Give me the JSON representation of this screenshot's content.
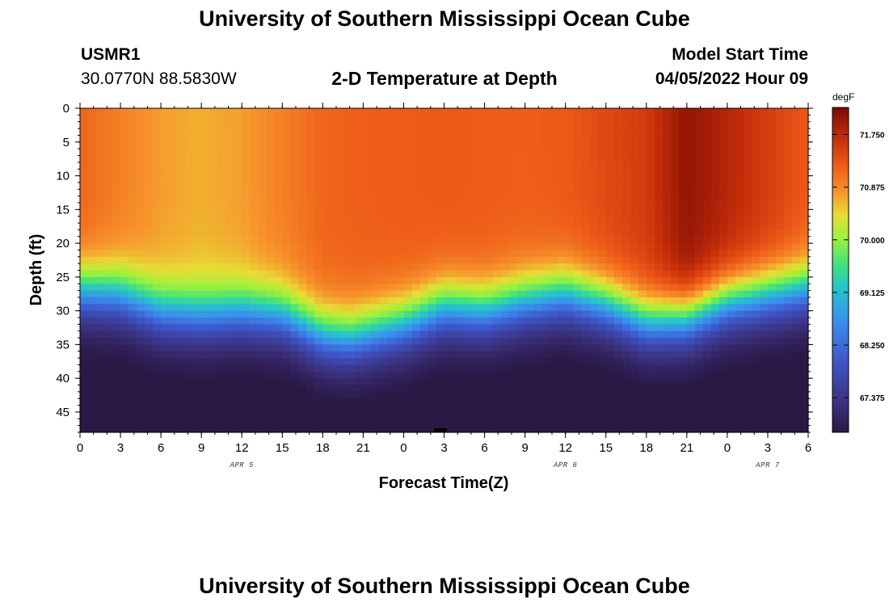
{
  "page": {
    "title": "University of Southern Mississippi Ocean Cube",
    "station_id": "USMR1",
    "coordinates": "30.0770N  88.5830W",
    "plot_title": "2-D Temperature at Depth",
    "model_start_label": "Model Start Time",
    "model_start_value": "04/05/2022 Hour 09",
    "footer_title": "University of Southern Mississippi Ocean Cube"
  },
  "chart_data": {
    "type": "heatmap",
    "title": "2-D Temperature at Depth",
    "xlabel": "Forecast Time(Z)",
    "ylabel": "Depth (ft)",
    "x_tick_labels": [
      "0",
      "3",
      "6",
      "9",
      "12",
      "15",
      "18",
      "21",
      "0",
      "3",
      "6",
      "9",
      "12",
      "15",
      "18",
      "21",
      "0",
      "3",
      "6"
    ],
    "x_range_hours": [
      0,
      54
    ],
    "date_labels": [
      {
        "text": "APR 5",
        "hour": 12
      },
      {
        "text": "APR 6",
        "hour": 36
      },
      {
        "text": "APR 7",
        "hour": 51
      }
    ],
    "y_tick_labels": [
      "0",
      "5",
      "10",
      "15",
      "20",
      "25",
      "30",
      "35",
      "40",
      "45"
    ],
    "ylim": [
      0,
      48
    ],
    "y_reversed": true,
    "colorbar": {
      "unit": "degF",
      "min": 66.8,
      "max": 72.2,
      "tick_labels": [
        "71.750",
        "70.875",
        "70.000",
        "69.125",
        "68.250",
        "67.375"
      ],
      "tick_values": [
        71.75,
        70.875,
        70.0,
        69.125,
        68.25,
        67.375
      ]
    },
    "surface_temperature_profile": {
      "hours": [
        0,
        6,
        9,
        12,
        18,
        21,
        27,
        33,
        36,
        42,
        45,
        48,
        54
      ],
      "values_degF": [
        71.15,
        70.75,
        70.65,
        70.75,
        71.15,
        71.2,
        71.25,
        71.2,
        71.25,
        71.55,
        72.05,
        71.8,
        71.25
      ]
    },
    "thermocline_depth_ft": {
      "hours": [
        0,
        3,
        6,
        9,
        12,
        15,
        18,
        20,
        24,
        27,
        30,
        33,
        36,
        39,
        42,
        45,
        48,
        51,
        54
      ],
      "values": [
        27,
        27.5,
        30,
        30.5,
        30,
        30.5,
        33.5,
        34,
        32,
        29.5,
        30,
        28.5,
        27.5,
        29,
        31.5,
        31,
        28.5,
        27.5,
        26.5
      ]
    },
    "bottom_temperature_degF": 66.95
  }
}
